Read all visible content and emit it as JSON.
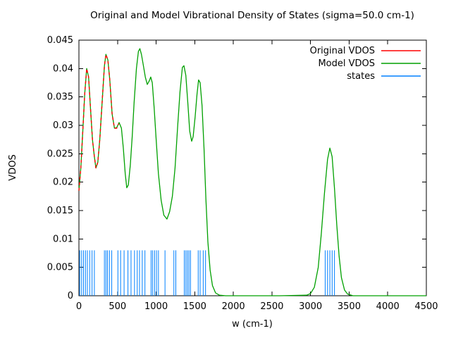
{
  "chart_data": {
    "type": "line",
    "title": "Original and Model Vibrational Density of States (sigma=50.0 cm-1)",
    "xlabel": "w (cm-1)",
    "ylabel": "VDOS",
    "xlim": [
      0,
      4500
    ],
    "ylim": [
      0,
      0.045
    ],
    "xtick_step": 500,
    "ytick_step": 0.005,
    "grid": false,
    "legend_position": "top-right-inside",
    "axis_color": "#000000",
    "background_color": "#ffffff",
    "series": [
      {
        "name": "Original VDOS",
        "type": "line",
        "color": "#ff0000",
        "dashed_overlap": true,
        "points": [
          [
            0,
            0.0185
          ],
          [
            25,
            0.0225
          ],
          [
            50,
            0.029
          ],
          [
            75,
            0.0355
          ],
          [
            100,
            0.04
          ],
          [
            125,
            0.0385
          ],
          [
            150,
            0.033
          ],
          [
            175,
            0.0275
          ],
          [
            200,
            0.0245
          ],
          [
            220,
            0.0225
          ],
          [
            245,
            0.0235
          ],
          [
            270,
            0.0275
          ],
          [
            300,
            0.034
          ],
          [
            330,
            0.0405
          ],
          [
            350,
            0.0425
          ],
          [
            375,
            0.0415
          ],
          [
            400,
            0.038
          ],
          [
            430,
            0.032
          ],
          [
            460,
            0.0295
          ],
          [
            490,
            0.0295
          ],
          [
            515,
            0.0303
          ]
        ]
      },
      {
        "name": "Model VDOS",
        "type": "line",
        "color": "#00a000",
        "points": [
          [
            0,
            0.0185
          ],
          [
            25,
            0.0225
          ],
          [
            50,
            0.029
          ],
          [
            75,
            0.0355
          ],
          [
            100,
            0.04
          ],
          [
            125,
            0.0385
          ],
          [
            150,
            0.033
          ],
          [
            175,
            0.0275
          ],
          [
            200,
            0.0245
          ],
          [
            220,
            0.0225
          ],
          [
            245,
            0.0235
          ],
          [
            270,
            0.0275
          ],
          [
            300,
            0.034
          ],
          [
            330,
            0.0405
          ],
          [
            350,
            0.0425
          ],
          [
            375,
            0.0415
          ],
          [
            400,
            0.038
          ],
          [
            430,
            0.032
          ],
          [
            460,
            0.0295
          ],
          [
            490,
            0.0296
          ],
          [
            520,
            0.0305
          ],
          [
            550,
            0.0295
          ],
          [
            575,
            0.026
          ],
          [
            600,
            0.0215
          ],
          [
            620,
            0.019
          ],
          [
            640,
            0.0195
          ],
          [
            665,
            0.023
          ],
          [
            690,
            0.028
          ],
          [
            715,
            0.034
          ],
          [
            745,
            0.04
          ],
          [
            770,
            0.043
          ],
          [
            790,
            0.0435
          ],
          [
            810,
            0.0425
          ],
          [
            835,
            0.0405
          ],
          [
            860,
            0.0385
          ],
          [
            885,
            0.0372
          ],
          [
            910,
            0.0378
          ],
          [
            930,
            0.0385
          ],
          [
            950,
            0.0375
          ],
          [
            975,
            0.033
          ],
          [
            1000,
            0.0275
          ],
          [
            1030,
            0.0215
          ],
          [
            1065,
            0.0168
          ],
          [
            1100,
            0.0142
          ],
          [
            1140,
            0.0135
          ],
          [
            1175,
            0.0148
          ],
          [
            1210,
            0.0175
          ],
          [
            1245,
            0.0225
          ],
          [
            1280,
            0.03
          ],
          [
            1310,
            0.036
          ],
          [
            1340,
            0.0402
          ],
          [
            1360,
            0.0405
          ],
          [
            1385,
            0.0388
          ],
          [
            1410,
            0.034
          ],
          [
            1435,
            0.029
          ],
          [
            1460,
            0.0272
          ],
          [
            1480,
            0.028
          ],
          [
            1505,
            0.0315
          ],
          [
            1530,
            0.0355
          ],
          [
            1550,
            0.038
          ],
          [
            1570,
            0.0375
          ],
          [
            1595,
            0.0335
          ],
          [
            1620,
            0.026
          ],
          [
            1645,
            0.017
          ],
          [
            1670,
            0.0095
          ],
          [
            1700,
            0.0045
          ],
          [
            1730,
            0.0018
          ],
          [
            1770,
            0.0005
          ],
          [
            1820,
            0.0001
          ],
          [
            1900,
            0
          ],
          [
            2200,
            0
          ],
          [
            2600,
            0
          ],
          [
            2950,
            0.0001
          ],
          [
            3000,
            0.0004
          ],
          [
            3050,
            0.0015
          ],
          [
            3100,
            0.005
          ],
          [
            3140,
            0.011
          ],
          [
            3180,
            0.018
          ],
          [
            3220,
            0.024
          ],
          [
            3250,
            0.026
          ],
          [
            3280,
            0.0245
          ],
          [
            3310,
            0.019
          ],
          [
            3340,
            0.0125
          ],
          [
            3370,
            0.007
          ],
          [
            3400,
            0.0032
          ],
          [
            3440,
            0.001
          ],
          [
            3480,
            0.0003
          ],
          [
            3550,
            0
          ],
          [
            4000,
            0
          ],
          [
            4500,
            0
          ]
        ]
      },
      {
        "name": "states",
        "type": "impulses",
        "color": "#0080ff",
        "height": 0.008,
        "x": [
          10,
          35,
          60,
          85,
          110,
          140,
          170,
          200,
          330,
          350,
          370,
          395,
          425,
          505,
          540,
          585,
          635,
          675,
          720,
          755,
          785,
          820,
          855,
          935,
          955,
          980,
          1005,
          1030,
          1115,
          1230,
          1255,
          1365,
          1385,
          1405,
          1425,
          1445,
          1545,
          1570,
          1610,
          1640,
          3190,
          3220,
          3250,
          3280,
          3310
        ]
      }
    ]
  }
}
